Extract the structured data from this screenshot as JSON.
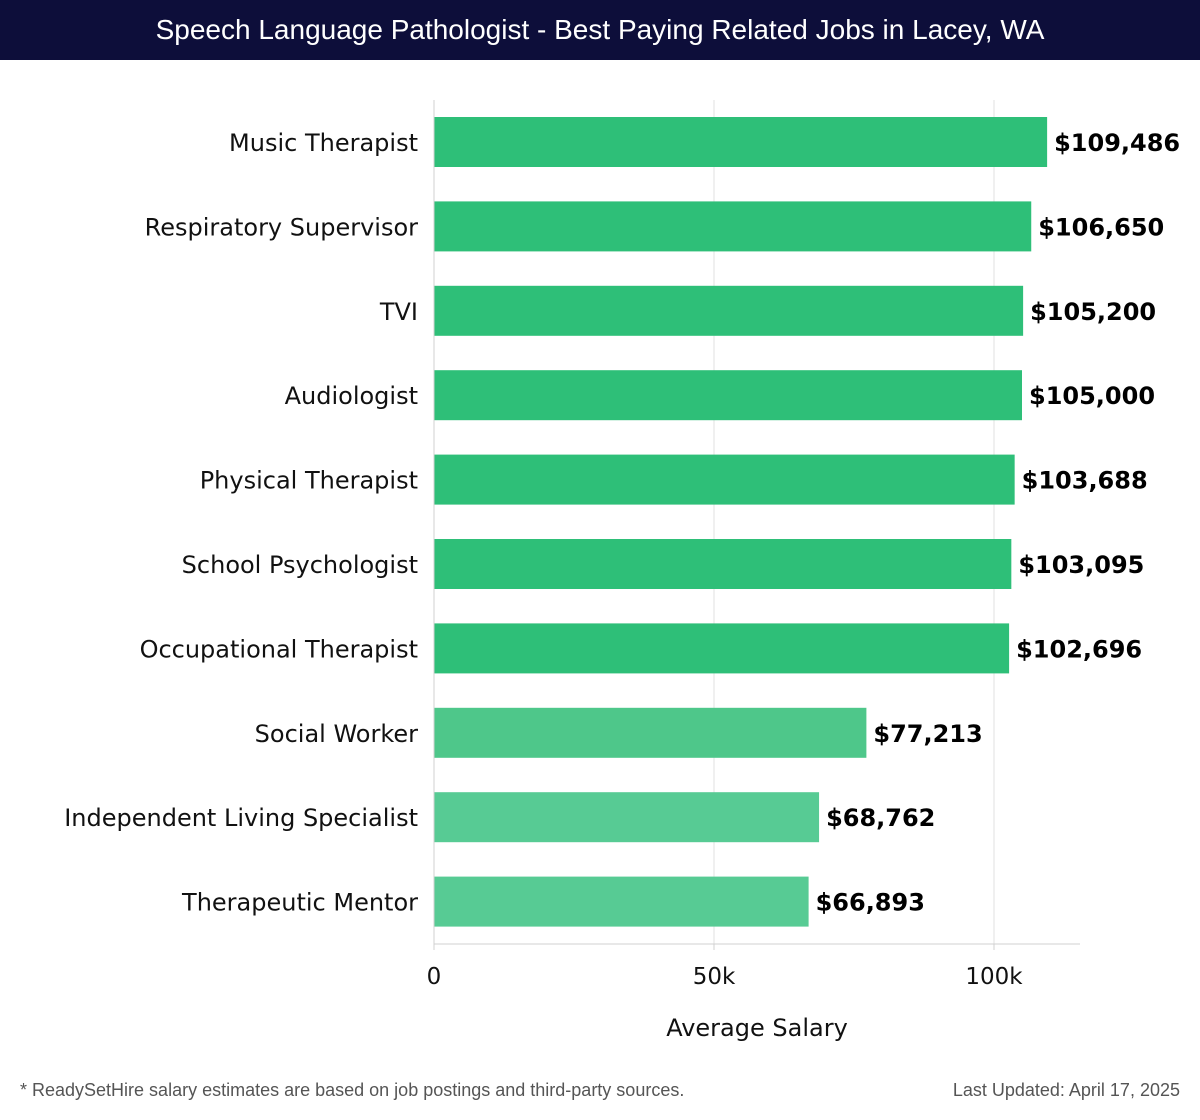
{
  "header": {
    "title": "Speech Language Pathologist - Best Paying Related Jobs in Lacey, WA"
  },
  "chart_data": {
    "type": "bar",
    "orientation": "horizontal",
    "title": "Speech Language Pathologist - Best Paying Related Jobs in Lacey, WA",
    "xlabel": "Average Salary",
    "ylabel": "",
    "xlim": [
      0,
      115000
    ],
    "x_ticks": [
      {
        "value": 0,
        "label": "0"
      },
      {
        "value": 50000,
        "label": "50k"
      },
      {
        "value": 100000,
        "label": "100k"
      }
    ],
    "categories": [
      "Music Therapist",
      "Respiratory Supervisor",
      "TVI",
      "Audiologist",
      "Physical Therapist",
      "School Psychologist",
      "Occupational Therapist",
      "Social Worker",
      "Independent Living Specialist",
      "Therapeutic Mentor"
    ],
    "values": [
      109486,
      106650,
      105200,
      105000,
      103688,
      103095,
      102696,
      77213,
      68762,
      66893
    ],
    "value_labels": [
      "$109,486",
      "$106,650",
      "$105,200",
      "$105,000",
      "$103,688",
      "$103,095",
      "$102,696",
      "$77,213",
      "$68,762",
      "$66,893"
    ],
    "bar_colors": [
      "#2ebf78",
      "#2ebf78",
      "#2ebf78",
      "#2ebf78",
      "#2ebf78",
      "#2ebf78",
      "#2ebf78",
      "#4ec78a",
      "#57cb94",
      "#57cb94"
    ],
    "grid": true
  },
  "footer": {
    "note": "* ReadySetHire salary estimates are based on job postings and third-party sources.",
    "updated": "Last Updated: April 17, 2025"
  }
}
